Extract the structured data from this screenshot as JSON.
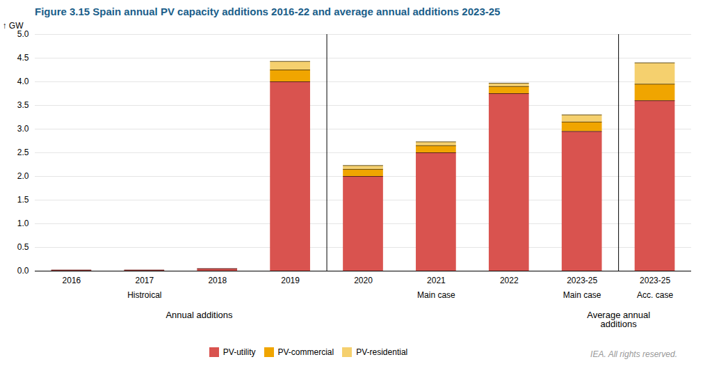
{
  "chart_data": {
    "type": "bar",
    "stacked": true,
    "title": "Figure 3.15  Spain annual PV capacity additions 2016-22 and average annual additions 2023-25",
    "ylabel": "GW",
    "categories": [
      "2016",
      "2017",
      "2018",
      "2019",
      "2020",
      "2021",
      "2022",
      "2023-25",
      "2023-25"
    ],
    "series": [
      {
        "name": "PV-utility",
        "color": "#d9534f",
        "values": [
          0.02,
          0.02,
          0.05,
          4.0,
          2.0,
          2.5,
          3.75,
          2.95,
          3.6
        ]
      },
      {
        "name": "PV-commercial",
        "color": "#f0a500",
        "values": [
          0.0,
          0.0,
          0.0,
          0.25,
          0.15,
          0.15,
          0.15,
          0.2,
          0.35
        ]
      },
      {
        "name": "PV-residential",
        "color": "#f5d06e",
        "values": [
          0.0,
          0.0,
          0.0,
          0.18,
          0.08,
          0.08,
          0.07,
          0.15,
          0.45
        ]
      }
    ],
    "ylim": [
      0,
      5.0
    ],
    "yticks": [
      {
        "value": 0,
        "label": "0.0"
      },
      0.5,
      {
        "value": 1,
        "label": "1.0"
      },
      1.5,
      {
        "value": 2,
        "label": "2.0"
      },
      2.5,
      {
        "value": 3,
        "label": "3.0"
      },
      3.5,
      {
        "value": 4,
        "label": "4.0"
      },
      4.5,
      {
        "value": 5,
        "label": "5.0"
      }
    ],
    "grid": true,
    "legend": "bottom",
    "annotations": [
      "Histroical",
      "Main case",
      "Main case",
      "Acc. case",
      "Annual additions",
      "Average annual\nadditions",
      "IEA. All rights reserved."
    ]
  }
}
